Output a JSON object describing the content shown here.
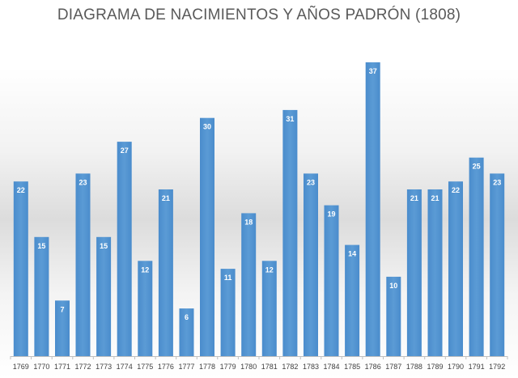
{
  "title": "DIAGRAMA DE NACIMIENTOS Y AÑOS PADRÓN (1808)",
  "colors": {
    "bar": "#5b9bd5",
    "bar_top": "#4a8ccc",
    "axis": "#bfbfbf"
  },
  "chart_data": {
    "type": "bar",
    "title": "DIAGRAMA DE NACIMIENTOS Y AÑOS PADRÓN (1808)",
    "xlabel": "",
    "ylabel": "",
    "categories": [
      "1769",
      "1770",
      "1771",
      "1772",
      "1773",
      "1774",
      "1775",
      "1776",
      "1777",
      "1778",
      "1779",
      "1780",
      "1781",
      "1782",
      "1783",
      "1784",
      "1785",
      "1786",
      "1787",
      "1788",
      "1789",
      "1790",
      "1791",
      "1792"
    ],
    "values": [
      22,
      15,
      7,
      23,
      15,
      27,
      12,
      21,
      6,
      30,
      11,
      18,
      12,
      31,
      23,
      19,
      14,
      37,
      10,
      21,
      21,
      22,
      25,
      23
    ],
    "ylim": [
      0,
      37
    ],
    "grid": false,
    "legend": "none",
    "data_labels": true
  }
}
